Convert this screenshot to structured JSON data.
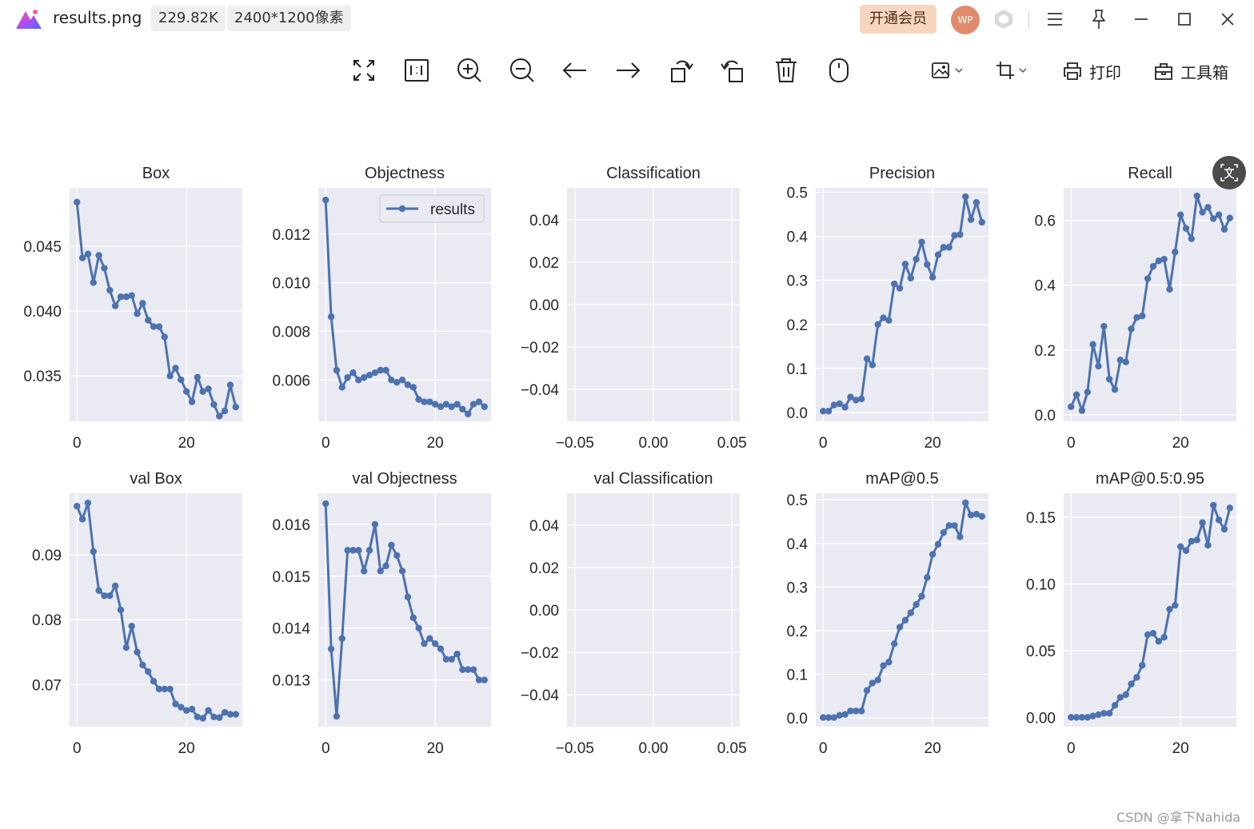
{
  "titlebar": {
    "filename": "results.png",
    "filesize": "229.82K",
    "dimensions": "2400*1200像素",
    "vip_button": "开通会员",
    "avatar_initials": "WP",
    "icons": [
      "app-logo-icon",
      "hexagon-icon",
      "menu-icon",
      "pin-icon",
      "minimize-icon",
      "maximize-icon",
      "close-icon"
    ]
  },
  "toolbar": {
    "icons": [
      "fullscreen-icon",
      "actual-size-icon",
      "zoom-in-icon",
      "zoom-out-icon",
      "previous-icon",
      "next-icon",
      "rotate-left-icon",
      "rotate-right-icon",
      "delete-icon",
      "mouse-icon",
      "image-edit-icon",
      "crop-icon",
      "print-icon",
      "toolbox-icon"
    ],
    "print_label": "打印",
    "toolbox_label": "工具箱"
  },
  "accent": {
    "line": "#4c72b0",
    "plot_bg": "#eaeaf2",
    "grid": "#ffffff"
  },
  "chart_data": [
    {
      "type": "line",
      "title": "Box",
      "legend": false,
      "x_ticks": [
        "0",
        "20"
      ],
      "y_ticks": [
        "0.035",
        "0.040",
        "0.045"
      ],
      "ylim": [
        0.0315,
        0.0495
      ],
      "values": [
        0.0484,
        0.0441,
        0.0444,
        0.0422,
        0.0443,
        0.0433,
        0.0416,
        0.0404,
        0.0411,
        0.0411,
        0.0412,
        0.0398,
        0.0406,
        0.0393,
        0.0388,
        0.0388,
        0.038,
        0.035,
        0.0356,
        0.0347,
        0.0338,
        0.033,
        0.0349,
        0.0338,
        0.034,
        0.0328,
        0.0319,
        0.0323,
        0.0343,
        0.0326
      ]
    },
    {
      "type": "line",
      "title": "Objectness",
      "legend": true,
      "legend_label": "results",
      "x_ticks": [
        "0",
        "20"
      ],
      "y_ticks": [
        "0.006",
        "0.008",
        "0.010",
        "0.012"
      ],
      "ylim": [
        0.0043,
        0.0139
      ],
      "values": [
        0.0134,
        0.0086,
        0.0064,
        0.0057,
        0.0061,
        0.0063,
        0.006,
        0.0061,
        0.0062,
        0.0063,
        0.0064,
        0.0064,
        0.006,
        0.0059,
        0.006,
        0.0058,
        0.0057,
        0.0052,
        0.0051,
        0.0051,
        0.005,
        0.0049,
        0.005,
        0.0049,
        0.005,
        0.0048,
        0.0046,
        0.005,
        0.0051,
        0.0049
      ]
    },
    {
      "type": "line",
      "title": "Classification",
      "legend": false,
      "x_ticks": [
        "−0.05",
        "0.00",
        "0.05"
      ],
      "y_ticks": [
        "−0.04",
        "−0.02",
        "0.00",
        "0.02",
        "0.04"
      ],
      "ylim": [
        -0.055,
        0.055
      ],
      "xlim": [
        -0.055,
        0.055
      ],
      "values": []
    },
    {
      "type": "line",
      "title": "Precision",
      "legend": false,
      "x_ticks": [
        "0",
        "20"
      ],
      "y_ticks": [
        "0.0",
        "0.1",
        "0.2",
        "0.3",
        "0.4",
        "0.5"
      ],
      "ylim": [
        -0.02,
        0.51
      ],
      "values": [
        0.003,
        0.003,
        0.017,
        0.02,
        0.012,
        0.035,
        0.028,
        0.031,
        0.122,
        0.108,
        0.2,
        0.215,
        0.209,
        0.292,
        0.282,
        0.337,
        0.305,
        0.348,
        0.387,
        0.336,
        0.307,
        0.358,
        0.375,
        0.375,
        0.402,
        0.404,
        0.49,
        0.438,
        0.477,
        0.432
      ]
    },
    {
      "type": "line",
      "title": "Recall",
      "legend": false,
      "x_ticks": [
        "0",
        "20"
      ],
      "y_ticks": [
        "0.0",
        "0.2",
        "0.4",
        "0.6"
      ],
      "ylim": [
        -0.02,
        0.7
      ],
      "values": [
        0.025,
        0.062,
        0.013,
        0.07,
        0.217,
        0.15,
        0.273,
        0.11,
        0.078,
        0.169,
        0.163,
        0.265,
        0.3,
        0.305,
        0.42,
        0.458,
        0.475,
        0.48,
        0.387,
        0.502,
        0.617,
        0.575,
        0.543,
        0.675,
        0.625,
        0.64,
        0.605,
        0.617,
        0.572,
        0.607
      ]
    },
    {
      "type": "line",
      "title": "val Box",
      "legend": false,
      "x_ticks": [
        "0",
        "20"
      ],
      "y_ticks": [
        "0.07",
        "0.08",
        "0.09"
      ],
      "ylim": [
        0.0635,
        0.0995
      ],
      "values": [
        0.0975,
        0.0955,
        0.098,
        0.0905,
        0.0845,
        0.0837,
        0.0837,
        0.0852,
        0.0815,
        0.0757,
        0.079,
        0.075,
        0.073,
        0.072,
        0.0705,
        0.0693,
        0.0693,
        0.0693,
        0.067,
        0.0665,
        0.066,
        0.0662,
        0.065,
        0.0648,
        0.066,
        0.065,
        0.0649,
        0.0657,
        0.0654,
        0.0654
      ]
    },
    {
      "type": "line",
      "title": "val Objectness",
      "legend": false,
      "x_ticks": [
        "0",
        "20"
      ],
      "y_ticks": [
        "0.013",
        "0.014",
        "0.015",
        "0.016"
      ],
      "ylim": [
        0.0121,
        0.0166
      ],
      "values": [
        0.0164,
        0.0136,
        0.0123,
        0.0138,
        0.0155,
        0.0155,
        0.0155,
        0.0151,
        0.0155,
        0.016,
        0.0151,
        0.0152,
        0.0156,
        0.0154,
        0.0151,
        0.0146,
        0.0142,
        0.014,
        0.0137,
        0.0138,
        0.0137,
        0.0136,
        0.0134,
        0.0134,
        0.0135,
        0.0132,
        0.0132,
        0.0132,
        0.013,
        0.013
      ]
    },
    {
      "type": "line",
      "title": "val Classification",
      "legend": false,
      "x_ticks": [
        "−0.05",
        "0.00",
        "0.05"
      ],
      "y_ticks": [
        "−0.04",
        "−0.02",
        "0.00",
        "0.02",
        "0.04"
      ],
      "ylim": [
        -0.055,
        0.055
      ],
      "xlim": [
        -0.055,
        0.055
      ],
      "values": []
    },
    {
      "type": "line",
      "title": "mAP@0.5",
      "legend": false,
      "x_ticks": [
        "0",
        "20"
      ],
      "y_ticks": [
        "0.0",
        "0.1",
        "0.2",
        "0.3",
        "0.4",
        "0.5"
      ],
      "ylim": [
        -0.02,
        0.515
      ],
      "values": [
        0.001,
        0.001,
        0.001,
        0.006,
        0.008,
        0.016,
        0.016,
        0.016,
        0.063,
        0.08,
        0.087,
        0.12,
        0.128,
        0.17,
        0.208,
        0.224,
        0.241,
        0.26,
        0.279,
        0.322,
        0.375,
        0.398,
        0.425,
        0.441,
        0.441,
        0.415,
        0.493,
        0.465,
        0.467,
        0.462
      ]
    },
    {
      "type": "line",
      "title": "mAP@0.5:0.95",
      "legend": false,
      "x_ticks": [
        "0",
        "20"
      ],
      "y_ticks": [
        "0.00",
        "0.05",
        "0.10",
        "0.15"
      ],
      "ylim": [
        -0.007,
        0.168
      ],
      "values": [
        0.0,
        0.0,
        0.0,
        0.0,
        0.001,
        0.002,
        0.003,
        0.003,
        0.009,
        0.015,
        0.017,
        0.025,
        0.03,
        0.039,
        0.062,
        0.063,
        0.057,
        0.06,
        0.081,
        0.084,
        0.128,
        0.125,
        0.132,
        0.133,
        0.146,
        0.129,
        0.159,
        0.148,
        0.141,
        0.157
      ]
    }
  ],
  "watermark": "CSDN @拿下Nahida"
}
